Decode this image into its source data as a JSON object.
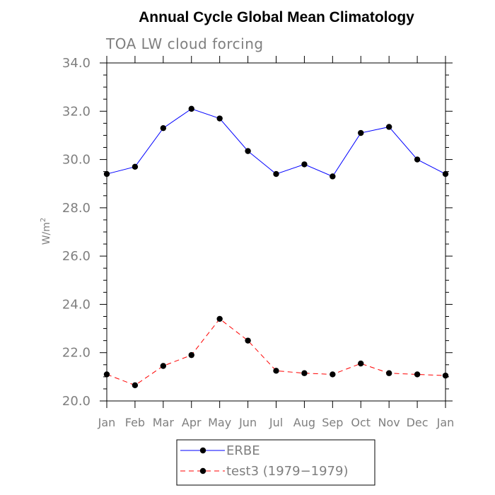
{
  "chart_data": {
    "type": "line",
    "title": "Annual Cycle Global Mean Climatology",
    "subtitle": "TOA LW cloud forcing",
    "ylabel": "W/m",
    "ylabel_sup": "2",
    "categories": [
      "Jan",
      "Feb",
      "Mar",
      "Apr",
      "May",
      "Jun",
      "Jul",
      "Aug",
      "Sep",
      "Oct",
      "Nov",
      "Dec",
      "Jan"
    ],
    "ylim": [
      20.0,
      34.0
    ],
    "yticks": [
      "20.0",
      "22.0",
      "24.0",
      "26.0",
      "28.0",
      "30.0",
      "32.0",
      "34.0"
    ],
    "series": [
      {
        "name": "ERBE",
        "color": "#0000ff",
        "dash": "solid",
        "values": [
          29.4,
          29.7,
          31.3,
          32.1,
          31.7,
          30.35,
          29.4,
          29.8,
          29.3,
          31.1,
          31.35,
          30.0,
          29.4
        ]
      },
      {
        "name": "test3 (1979−1979)",
        "color": "#ff0000",
        "dash": "dashed",
        "values": [
          21.1,
          20.65,
          21.45,
          21.9,
          23.4,
          22.5,
          21.25,
          21.15,
          21.1,
          21.55,
          21.15,
          21.1,
          21.05
        ]
      }
    ],
    "grid": false,
    "legend_position": "bottom-center"
  }
}
